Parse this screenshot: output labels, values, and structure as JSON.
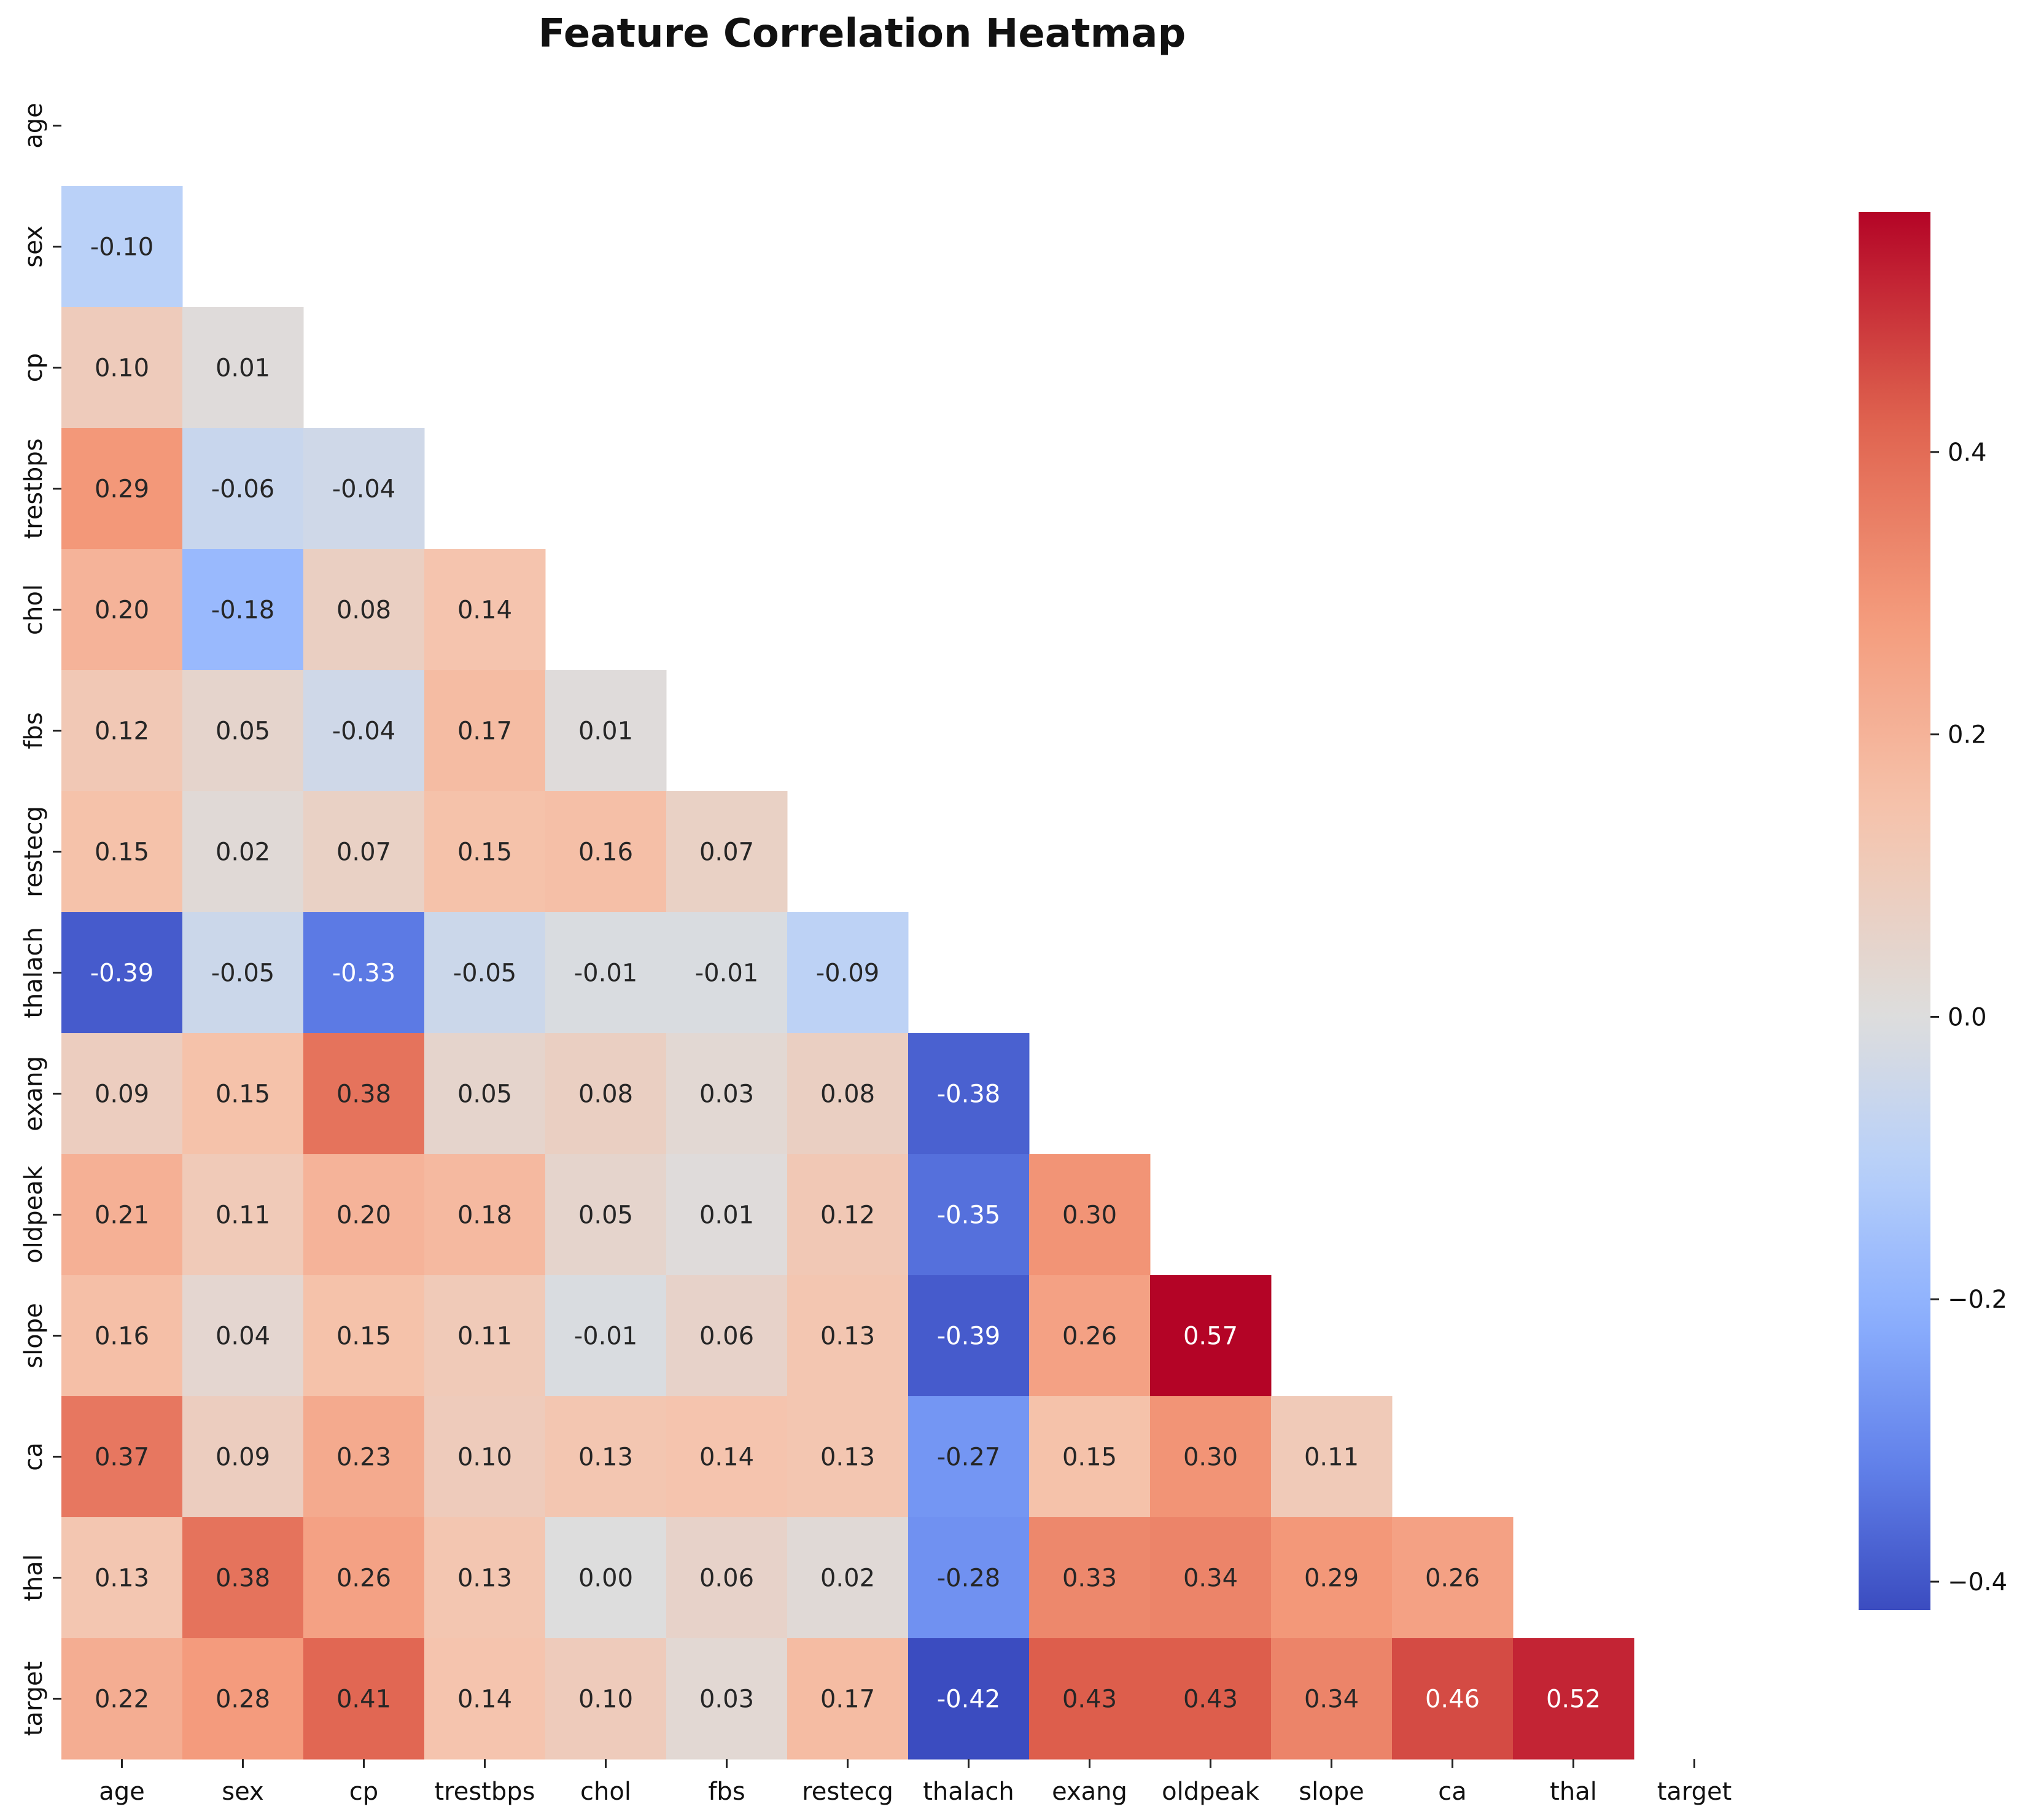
{
  "chart_data": {
    "type": "heatmap",
    "title": "Feature Correlation Heatmap",
    "xlabel": "",
    "ylabel": "",
    "labels": [
      "age",
      "sex",
      "cp",
      "trestbps",
      "chol",
      "fbs",
      "restecg",
      "thalach",
      "exang",
      "oldpeak",
      "slope",
      "ca",
      "thal",
      "target"
    ],
    "mask": "upper triangle including diagonal",
    "annotation_format": "0.00",
    "values": [
      [],
      [
        -0.1
      ],
      [
        0.1,
        0.01
      ],
      [
        0.29,
        -0.06,
        -0.04
      ],
      [
        0.2,
        -0.18,
        0.08,
        0.14
      ],
      [
        0.12,
        0.05,
        -0.04,
        0.17,
        0.01
      ],
      [
        0.15,
        0.02,
        0.07,
        0.15,
        0.16,
        0.07
      ],
      [
        -0.39,
        -0.05,
        -0.33,
        -0.05,
        -0.01,
        -0.01,
        -0.09
      ],
      [
        0.09,
        0.15,
        0.38,
        0.05,
        0.08,
        0.03,
        0.08,
        -0.38
      ],
      [
        0.21,
        0.11,
        0.2,
        0.18,
        0.05,
        0.01,
        0.12,
        -0.35,
        0.3
      ],
      [
        0.16,
        0.04,
        0.15,
        0.11,
        -0.01,
        0.06,
        0.13,
        -0.39,
        0.26,
        0.57
      ],
      [
        0.37,
        0.09,
        0.23,
        0.1,
        0.13,
        0.14,
        0.13,
        -0.27,
        0.15,
        0.3,
        0.11
      ],
      [
        0.13,
        0.38,
        0.26,
        0.13,
        0.0,
        0.06,
        0.02,
        -0.28,
        0.33,
        0.34,
        0.29,
        0.26
      ],
      [
        0.22,
        0.28,
        0.41,
        0.14,
        0.1,
        0.03,
        0.17,
        -0.42,
        0.43,
        0.43,
        0.34,
        0.46,
        0.52
      ]
    ],
    "colormap": "coolwarm",
    "colorbar": {
      "range": [
        -0.42,
        0.57
      ],
      "ticks": [
        -0.4,
        -0.2,
        0.0,
        0.2,
        0.4
      ],
      "tick_labels": [
        "−0.4",
        "−0.2",
        "0.0",
        "0.2",
        "0.4"
      ]
    },
    "grid": false
  }
}
